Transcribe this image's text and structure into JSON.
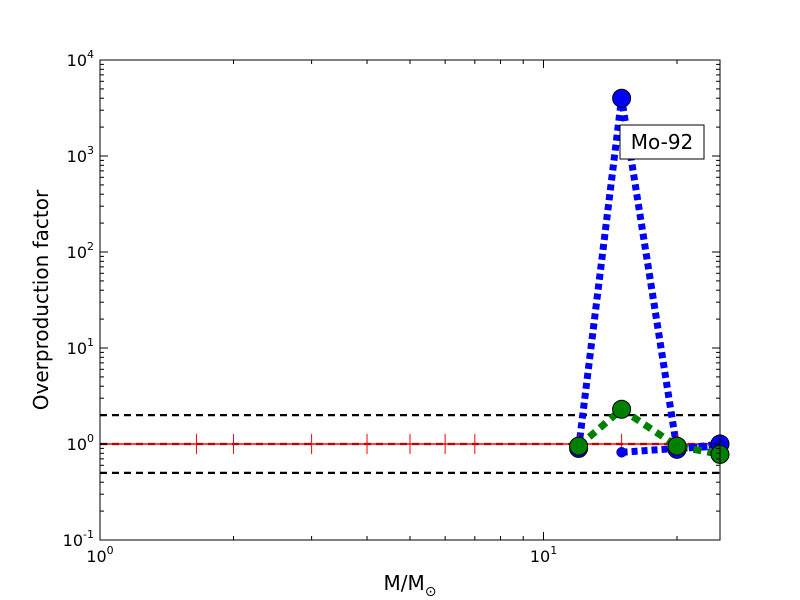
{
  "chart_data": {
    "type": "line",
    "title": "",
    "xlabel": "M/M",
    "xlabel_sub": "⊙",
    "ylabel": "Overproduction factor",
    "xscale": "log",
    "yscale": "log",
    "xlim": [
      1,
      25
    ],
    "ylim": [
      0.1,
      10000
    ],
    "xticks": [
      {
        "value": 1,
        "base": "10",
        "exp": "0"
      },
      {
        "value": 10,
        "base": "10",
        "exp": "1"
      }
    ],
    "yticks": [
      {
        "value": 0.1,
        "base": "10",
        "exp": "-1"
      },
      {
        "value": 1,
        "base": "10",
        "exp": "0"
      },
      {
        "value": 10,
        "base": "10",
        "exp": "1"
      },
      {
        "value": 100,
        "base": "10",
        "exp": "2"
      },
      {
        "value": 1000,
        "base": "10",
        "exp": "3"
      },
      {
        "value": 10000,
        "base": "10",
        "exp": "4"
      }
    ],
    "annotation": "Mo-92",
    "reference_lines": [
      {
        "y": 2,
        "style": "dashed",
        "color": "#000000"
      },
      {
        "y": 1,
        "style": "dashed",
        "color": "#000000"
      },
      {
        "y": 0.5,
        "style": "dashed",
        "color": "#000000"
      }
    ],
    "series": [
      {
        "style": "solid",
        "color": "#ff0000",
        "marker": "vline",
        "x": [
          1.0,
          1.65,
          2.0,
          3.0,
          4.0,
          5.0,
          6.0,
          7.0,
          12.0,
          15.0,
          20.0,
          25.0
        ],
        "y": [
          1.0,
          1.0,
          1.0,
          1.0,
          1.0,
          1.0,
          1.0,
          1.0,
          1.0,
          1.0,
          1.0,
          1.0
        ]
      },
      {
        "style": "dotted",
        "color": "#0000ff",
        "marker": "circle",
        "x": [
          12,
          15,
          20,
          25
        ],
        "y": [
          0.9,
          4000,
          0.88,
          1.0
        ]
      },
      {
        "style": "dotted",
        "color": "#0000ff",
        "marker": "small-circle",
        "x": [
          15,
          20,
          25
        ],
        "y": [
          0.82,
          0.9,
          0.95
        ]
      },
      {
        "style": "dashed",
        "color": "#008000",
        "marker": "circle",
        "x": [
          12,
          15,
          20,
          25
        ],
        "y": [
          0.95,
          2.3,
          0.95,
          0.78
        ]
      }
    ]
  }
}
